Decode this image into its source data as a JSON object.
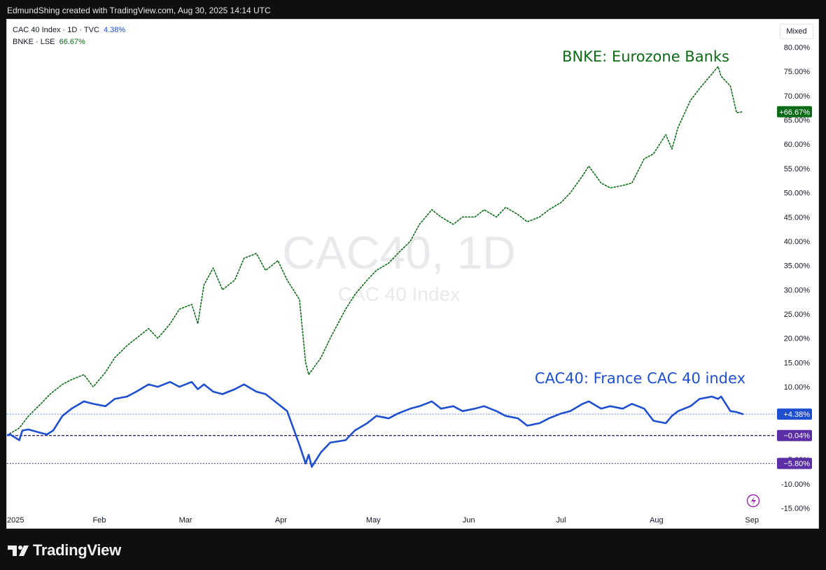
{
  "header": {
    "attribution": "EdmundShing created with TradingView.com, Aug 30, 2025 14:14 UTC"
  },
  "legend": {
    "cac": {
      "label": "CAC 40 Index · 1D · TVC",
      "value": "4.38%"
    },
    "bnke": {
      "label": "BNKE · LSE",
      "value": "66.67%"
    }
  },
  "toolbar": {
    "scale_mode": "Mixed"
  },
  "watermark": {
    "symbol": "CAC40, 1D",
    "description": "CAC 40 Index"
  },
  "footer": {
    "brand": "TradingView"
  },
  "colors": {
    "bnke": "#0b6b16",
    "cac": "#1f4fd1",
    "baseline": "#5b2ea6",
    "axis_text": "#131722"
  },
  "chart_data": {
    "type": "line",
    "title": "",
    "y_axis": {
      "unit": "%",
      "ylim": [
        -15,
        80
      ],
      "ticks": [
        80,
        75,
        70,
        65,
        60,
        55,
        50,
        45,
        40,
        35,
        30,
        25,
        20,
        15,
        10,
        5,
        0,
        -5,
        -10,
        -15
      ],
      "tick_labels": [
        "80.00%",
        "75.00%",
        "70.00%",
        "65.00%",
        "60.00%",
        "55.00%",
        "50.00%",
        "45.00%",
        "40.00%",
        "35.00%",
        "30.00%",
        "25.00%",
        "20.00%",
        "15.00%",
        "10.00%",
        "5.00%",
        "0.00%",
        "-5.00%",
        "-10.00%",
        "-15.00%"
      ]
    },
    "x_axis": {
      "xlim": [
        "2025-01-02",
        "2025-09-03"
      ],
      "ticks": [
        "2025-01-01",
        "2025-02-01",
        "2025-03-01",
        "2025-04-01",
        "2025-05-01",
        "2025-06-01",
        "2025-07-01",
        "2025-08-01",
        "2025-09-01"
      ],
      "tick_labels": [
        "2025",
        "Feb",
        "Mar",
        "Apr",
        "May",
        "Jun",
        "Jul",
        "Aug",
        "Sep"
      ]
    },
    "grid": false,
    "series": [
      {
        "name": "BNKE · LSE",
        "style": "dotted",
        "annotation": "BNKE: Eurozone Banks",
        "last_value_label": "+66.67%",
        "points": [
          [
            "2025-01-02",
            0.0
          ],
          [
            "2025-01-06",
            1.5
          ],
          [
            "2025-01-09",
            4.0
          ],
          [
            "2025-01-13",
            6.5
          ],
          [
            "2025-01-16",
            8.5
          ],
          [
            "2025-01-20",
            10.5
          ],
          [
            "2025-01-23",
            11.5
          ],
          [
            "2025-01-27",
            12.5
          ],
          [
            "2025-01-30",
            10.0
          ],
          [
            "2025-02-03",
            13.0
          ],
          [
            "2025-02-06",
            16.0
          ],
          [
            "2025-02-10",
            18.5
          ],
          [
            "2025-02-13",
            20.0
          ],
          [
            "2025-02-17",
            22.0
          ],
          [
            "2025-02-20",
            20.0
          ],
          [
            "2025-02-24",
            23.0
          ],
          [
            "2025-02-27",
            26.0
          ],
          [
            "2025-03-03",
            27.0
          ],
          [
            "2025-03-05",
            23.0
          ],
          [
            "2025-03-07",
            31.0
          ],
          [
            "2025-03-10",
            34.5
          ],
          [
            "2025-03-13",
            30.0
          ],
          [
            "2025-03-17",
            32.0
          ],
          [
            "2025-03-20",
            36.5
          ],
          [
            "2025-03-24",
            37.5
          ],
          [
            "2025-03-27",
            34.0
          ],
          [
            "2025-03-31",
            36.0
          ],
          [
            "2025-04-03",
            32.0
          ],
          [
            "2025-04-07",
            28.0
          ],
          [
            "2025-04-09",
            15.0
          ],
          [
            "2025-04-10",
            12.5
          ],
          [
            "2025-04-14",
            16.0
          ],
          [
            "2025-04-17",
            20.0
          ],
          [
            "2025-04-22",
            26.0
          ],
          [
            "2025-04-25",
            29.0
          ],
          [
            "2025-04-29",
            32.0
          ],
          [
            "2025-05-02",
            34.0
          ],
          [
            "2025-05-06",
            35.5
          ],
          [
            "2025-05-09",
            37.5
          ],
          [
            "2025-05-13",
            40.0
          ],
          [
            "2025-05-16",
            43.5
          ],
          [
            "2025-05-20",
            46.5
          ],
          [
            "2025-05-23",
            45.0
          ],
          [
            "2025-05-27",
            43.5
          ],
          [
            "2025-05-30",
            45.0
          ],
          [
            "2025-06-03",
            45.0
          ],
          [
            "2025-06-06",
            46.5
          ],
          [
            "2025-06-10",
            45.0
          ],
          [
            "2025-06-13",
            47.0
          ],
          [
            "2025-06-17",
            45.5
          ],
          [
            "2025-06-20",
            44.0
          ],
          [
            "2025-06-24",
            45.0
          ],
          [
            "2025-06-27",
            46.5
          ],
          [
            "2025-07-01",
            48.0
          ],
          [
            "2025-07-04",
            50.0
          ],
          [
            "2025-07-08",
            53.5
          ],
          [
            "2025-07-10",
            55.5
          ],
          [
            "2025-07-14",
            52.0
          ],
          [
            "2025-07-17",
            51.0
          ],
          [
            "2025-07-21",
            51.5
          ],
          [
            "2025-07-24",
            52.0
          ],
          [
            "2025-07-28",
            57.0
          ],
          [
            "2025-07-31",
            58.0
          ],
          [
            "2025-08-04",
            62.0
          ],
          [
            "2025-08-06",
            59.0
          ],
          [
            "2025-08-08",
            63.5
          ],
          [
            "2025-08-12",
            69.0
          ],
          [
            "2025-08-15",
            71.5
          ],
          [
            "2025-08-19",
            74.5
          ],
          [
            "2025-08-21",
            76.0
          ],
          [
            "2025-08-22",
            74.0
          ],
          [
            "2025-08-25",
            72.0
          ],
          [
            "2025-08-27",
            66.5
          ],
          [
            "2025-08-29",
            66.7
          ]
        ]
      },
      {
        "name": "CAC 40 Index · 1D · TVC",
        "style": "solid",
        "annotation": "CAC40: France CAC 40 index",
        "last_value_label": "+4.38%",
        "points": [
          [
            "2025-01-02",
            0.0
          ],
          [
            "2025-01-03",
            0.2
          ],
          [
            "2025-01-06",
            -1.0
          ],
          [
            "2025-01-07",
            1.0
          ],
          [
            "2025-01-09",
            1.2
          ],
          [
            "2025-01-13",
            0.5
          ],
          [
            "2025-01-15",
            0.2
          ],
          [
            "2025-01-17",
            1.0
          ],
          [
            "2025-01-20",
            4.0
          ],
          [
            "2025-01-23",
            5.5
          ],
          [
            "2025-01-27",
            7.0
          ],
          [
            "2025-01-30",
            6.5
          ],
          [
            "2025-02-03",
            6.0
          ],
          [
            "2025-02-06",
            7.5
          ],
          [
            "2025-02-10",
            8.0
          ],
          [
            "2025-02-13",
            9.0
          ],
          [
            "2025-02-17",
            10.5
          ],
          [
            "2025-02-20",
            10.0
          ],
          [
            "2025-02-24",
            11.0
          ],
          [
            "2025-02-27",
            10.0
          ],
          [
            "2025-03-03",
            11.0
          ],
          [
            "2025-03-05",
            9.5
          ],
          [
            "2025-03-07",
            10.5
          ],
          [
            "2025-03-10",
            9.0
          ],
          [
            "2025-03-13",
            8.5
          ],
          [
            "2025-03-17",
            9.5
          ],
          [
            "2025-03-20",
            10.5
          ],
          [
            "2025-03-24",
            9.0
          ],
          [
            "2025-03-27",
            8.5
          ],
          [
            "2025-03-31",
            6.5
          ],
          [
            "2025-04-03",
            5.0
          ],
          [
            "2025-04-07",
            -2.0
          ],
          [
            "2025-04-09",
            -5.8
          ],
          [
            "2025-04-10",
            -4.0
          ],
          [
            "2025-04-11",
            -6.5
          ],
          [
            "2025-04-14",
            -3.5
          ],
          [
            "2025-04-17",
            -1.5
          ],
          [
            "2025-04-22",
            -1.0
          ],
          [
            "2025-04-25",
            1.0
          ],
          [
            "2025-04-29",
            2.5
          ],
          [
            "2025-05-02",
            4.0
          ],
          [
            "2025-05-06",
            3.5
          ],
          [
            "2025-05-09",
            4.5
          ],
          [
            "2025-05-13",
            5.5
          ],
          [
            "2025-05-16",
            6.0
          ],
          [
            "2025-05-20",
            7.0
          ],
          [
            "2025-05-23",
            5.5
          ],
          [
            "2025-05-27",
            6.0
          ],
          [
            "2025-05-30",
            5.0
          ],
          [
            "2025-06-03",
            5.5
          ],
          [
            "2025-06-06",
            6.0
          ],
          [
            "2025-06-10",
            5.0
          ],
          [
            "2025-06-13",
            4.0
          ],
          [
            "2025-06-17",
            3.5
          ],
          [
            "2025-06-20",
            2.0
          ],
          [
            "2025-06-24",
            2.5
          ],
          [
            "2025-06-27",
            3.5
          ],
          [
            "2025-07-01",
            4.5
          ],
          [
            "2025-07-04",
            5.0
          ],
          [
            "2025-07-08",
            6.5
          ],
          [
            "2025-07-10",
            7.0
          ],
          [
            "2025-07-14",
            5.5
          ],
          [
            "2025-07-17",
            6.0
          ],
          [
            "2025-07-21",
            5.5
          ],
          [
            "2025-07-24",
            6.5
          ],
          [
            "2025-07-28",
            5.5
          ],
          [
            "2025-07-31",
            3.0
          ],
          [
            "2025-08-04",
            2.5
          ],
          [
            "2025-08-06",
            4.0
          ],
          [
            "2025-08-08",
            5.0
          ],
          [
            "2025-08-12",
            6.0
          ],
          [
            "2025-08-15",
            7.5
          ],
          [
            "2025-08-19",
            8.0
          ],
          [
            "2025-08-21",
            7.5
          ],
          [
            "2025-08-22",
            8.0
          ],
          [
            "2025-08-25",
            5.0
          ],
          [
            "2025-08-27",
            4.8
          ],
          [
            "2025-08-29",
            4.38
          ]
        ]
      }
    ],
    "reference_lines": [
      {
        "value": 4.38,
        "label": "+4.38%",
        "style": "dotted"
      },
      {
        "value": -0.04,
        "label": "−0.04%",
        "style": "dashed"
      },
      {
        "value": -5.8,
        "label": "−5.80%",
        "style": "dotted"
      }
    ],
    "annotations": [
      "BNKE: Eurozone Banks",
      "CAC40: France CAC 40 index"
    ]
  }
}
